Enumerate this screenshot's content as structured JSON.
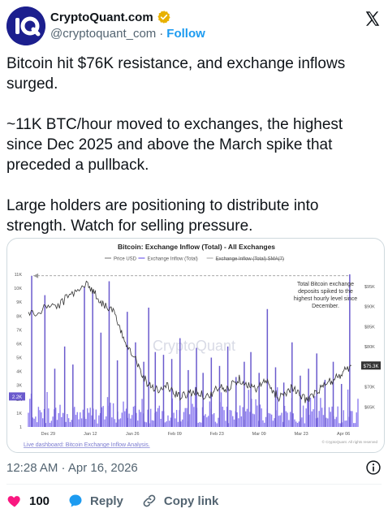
{
  "header": {
    "display_name": "CryptoQuant.com",
    "handle": "@cryptoquant_com",
    "separator": "·",
    "follow_label": "Follow"
  },
  "tweet": {
    "text": "Bitcoin hit $76K resistance, and exchange inflows surged.\n\n~11K BTC/hour moved to exchanges, the highest since Dec 2025 and above the March spike that preceded a pullback.\n\nLarge holders are positioning to distribute into strength. Watch for selling pressure."
  },
  "chart_data": {
    "type": "bar",
    "title": "Bitcoin: Exchange Inflow (Total) - All Exchanges",
    "legend": [
      "Price USD",
      "Exchange Inflow (Total)",
      "Exchange Inflow (Total) SMA(7)"
    ],
    "legend_placement": "top",
    "x_ticks": [
      "Dec 29",
      "Jan 12",
      "Jan 26",
      "Feb 09",
      "Feb 23",
      "Mar 09",
      "Mar 23",
      "Apr 06"
    ],
    "y_left_ticks": [
      "1",
      "1K",
      "2K",
      "3K",
      "4K",
      "5K",
      "6K",
      "7K",
      "8K",
      "9K",
      "10K",
      "11K"
    ],
    "y_right_ticks": [
      "$95K",
      "$90K",
      "$85K",
      "$80K",
      "$75K",
      "$70K",
      "$65K"
    ],
    "ylim_left": [
      0,
      11000
    ],
    "ylim_right": [
      60000,
      98000
    ],
    "left_marker_label": "2.2K",
    "right_marker_label": "$75.3K",
    "annotation": "Total Bitcoin exchange deposits spiked to the highest hourly level since December.",
    "watermark": "CryptoQuant",
    "copyright": "© CryptoQuant. All rights reserved",
    "footer_link": "Live dashboard: Bitcoin Exchange Inflow Analysis.",
    "grid": false,
    "spikes": [
      {
        "x": 1.0,
        "value": 10900
      },
      {
        "x": 5.0,
        "value": 9500
      },
      {
        "x": 8.0,
        "value": 4200
      },
      {
        "x": 11.0,
        "value": 5800
      },
      {
        "x": 13.5,
        "value": 4500
      },
      {
        "x": 17.0,
        "value": 10100
      },
      {
        "x": 19.5,
        "value": 9800
      },
      {
        "x": 22.0,
        "value": 6800
      },
      {
        "x": 24.5,
        "value": 10500
      },
      {
        "x": 27.0,
        "value": 4800
      },
      {
        "x": 30.0,
        "value": 8300
      },
      {
        "x": 32.5,
        "value": 6100
      },
      {
        "x": 35.0,
        "value": 4700
      },
      {
        "x": 36.5,
        "value": 8600
      },
      {
        "x": 38.5,
        "value": 5400
      },
      {
        "x": 41.0,
        "value": 5200
      },
      {
        "x": 43.5,
        "value": 4900
      },
      {
        "x": 46.0,
        "value": 6400
      },
      {
        "x": 48.5,
        "value": 4100
      },
      {
        "x": 51.0,
        "value": 5700
      },
      {
        "x": 53.0,
        "value": 3900
      },
      {
        "x": 55.5,
        "value": 5000
      },
      {
        "x": 58.0,
        "value": 4400
      },
      {
        "x": 60.5,
        "value": 5800
      },
      {
        "x": 63.0,
        "value": 3600
      },
      {
        "x": 65.5,
        "value": 4700
      },
      {
        "x": 67.5,
        "value": 5400
      },
      {
        "x": 70.0,
        "value": 3900
      },
      {
        "x": 72.5,
        "value": 8500
      },
      {
        "x": 75.0,
        "value": 4300
      },
      {
        "x": 77.5,
        "value": 3200
      },
      {
        "x": 80.0,
        "value": 6100
      },
      {
        "x": 82.5,
        "value": 3700
      },
      {
        "x": 85.0,
        "value": 4200
      },
      {
        "x": 87.5,
        "value": 5300
      },
      {
        "x": 90.0,
        "value": 3400
      },
      {
        "x": 92.5,
        "value": 4700
      },
      {
        "x": 95.0,
        "value": 3100
      },
      {
        "x": 97.5,
        "value": 11000
      }
    ],
    "price": [
      [
        0,
        88500
      ],
      [
        3,
        88000
      ],
      [
        6,
        90500
      ],
      [
        9,
        90000
      ],
      [
        12,
        92500
      ],
      [
        15,
        94500
      ],
      [
        18,
        95500
      ],
      [
        20,
        93500
      ],
      [
        22,
        91000
      ],
      [
        24,
        90000
      ],
      [
        26,
        88500
      ],
      [
        28,
        83500
      ],
      [
        30,
        80500
      ],
      [
        32,
        78000
      ],
      [
        34,
        74000
      ],
      [
        36,
        71000
      ],
      [
        38,
        70000
      ],
      [
        40,
        69000
      ],
      [
        42,
        70500
      ],
      [
        44,
        68500
      ],
      [
        46,
        67500
      ],
      [
        48,
        68000
      ],
      [
        50,
        69000
      ],
      [
        52,
        68500
      ],
      [
        54,
        67500
      ],
      [
        56,
        68500
      ],
      [
        58,
        70000
      ],
      [
        60,
        69000
      ],
      [
        62,
        71000
      ],
      [
        64,
        72000
      ],
      [
        66,
        71000
      ],
      [
        68,
        69500
      ],
      [
        70,
        70000
      ],
      [
        72,
        71500
      ],
      [
        74,
        69000
      ],
      [
        76,
        67500
      ],
      [
        78,
        68500
      ],
      [
        80,
        70000
      ],
      [
        82,
        68000
      ],
      [
        84,
        67000
      ],
      [
        86,
        67500
      ],
      [
        88,
        69000
      ],
      [
        90,
        70500
      ],
      [
        92,
        71500
      ],
      [
        94,
        72500
      ],
      [
        96,
        74000
      ],
      [
        98,
        75300
      ]
    ]
  },
  "timestamp": "12:28 AM · Apr 16, 2026",
  "actions": {
    "like_count": "100",
    "reply_label": "Reply",
    "copy_label": "Copy link"
  },
  "colors": {
    "brand_avatar": "#1c1f8e",
    "follow_blue": "#1d9bf0",
    "like_red": "#f91880",
    "bar_purple": "#7b68ee",
    "price_line": "#333333"
  }
}
